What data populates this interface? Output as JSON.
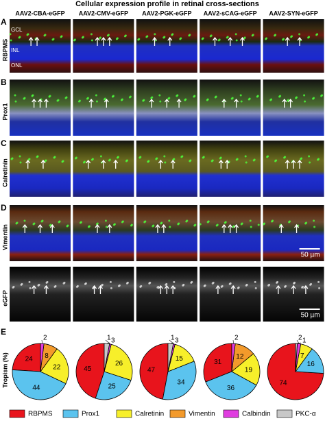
{
  "title": "Cellular expression profile in retinal cross-sections",
  "columns": [
    "AAV2-CBA-eGFP",
    "AAV2-CMV-eGFP",
    "AAV2-PGK-eGFP",
    "AAV2-sCAG-eGFP",
    "AAV2-SYN-eGFP"
  ],
  "rows": [
    {
      "panel": "A",
      "label": "RBPMS"
    },
    {
      "panel": "B",
      "label": "Prox1"
    },
    {
      "panel": "C",
      "label": "Calretinin"
    },
    {
      "panel": "D",
      "label": "Vimentin"
    },
    {
      "label": "eGFP"
    }
  ],
  "layers": [
    "GCL",
    "INL",
    "ONL"
  ],
  "scale_bars": [
    "50 µm",
    "50 µm"
  ],
  "chart_data": {
    "type": "pie",
    "panel": "E",
    "ylabel": "Tropism (%)",
    "categories": [
      "RBPMS",
      "Prox1",
      "Calretinin",
      "Vimentin",
      "Calbindin",
      "PKC-α"
    ],
    "colors": [
      "#e8141c",
      "#5bc3ee",
      "#f7ef2a",
      "#f39a2b",
      "#e03ce0",
      "#c8c8c8"
    ],
    "series": [
      {
        "values": [
          24,
          44,
          22,
          8,
          2,
          null
        ]
      },
      {
        "values": [
          45,
          25,
          26,
          null,
          1,
          3
        ]
      },
      {
        "values": [
          47,
          34,
          15,
          null,
          1,
          3
        ]
      },
      {
        "values": [
          31,
          36,
          19,
          12,
          2,
          null
        ]
      },
      {
        "values": [
          74,
          16,
          7,
          null,
          2,
          1
        ]
      }
    ]
  }
}
